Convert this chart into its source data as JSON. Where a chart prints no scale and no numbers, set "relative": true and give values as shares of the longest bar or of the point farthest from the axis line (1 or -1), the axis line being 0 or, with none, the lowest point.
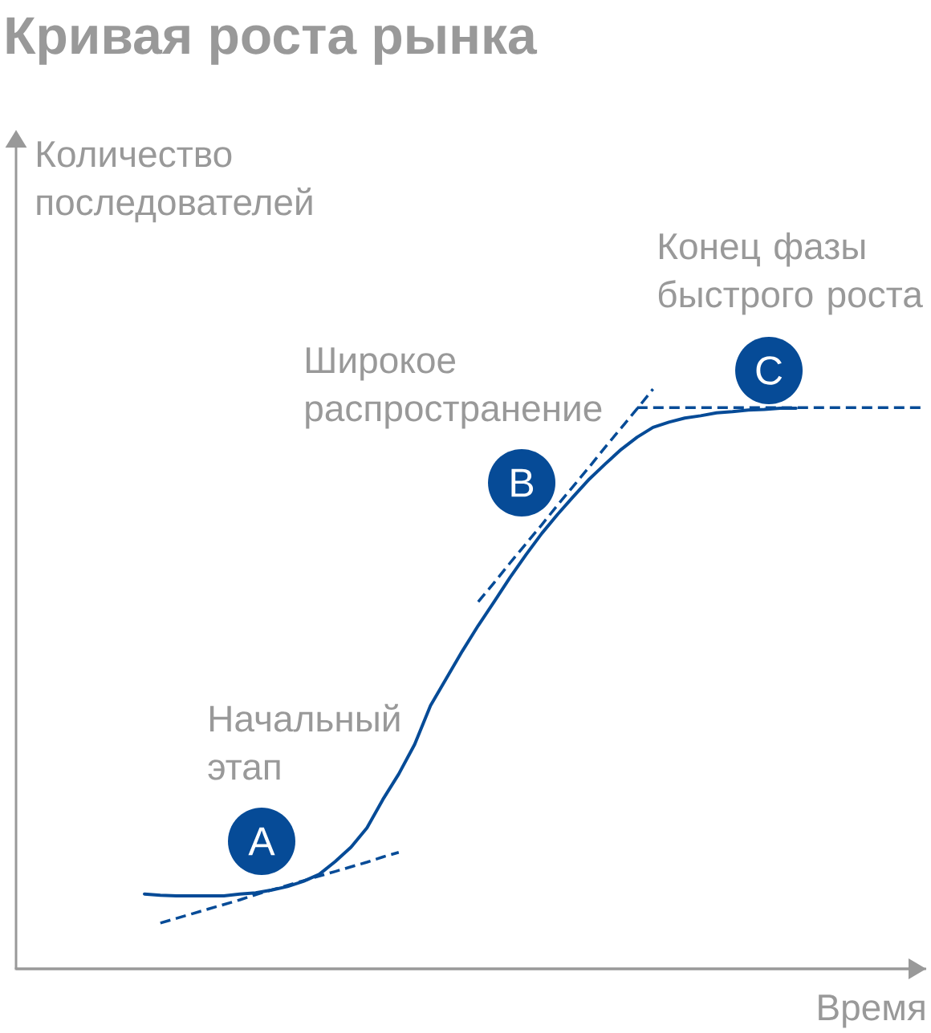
{
  "chart_data": {
    "type": "line",
    "title": "Кривая роста рынка",
    "xlabel": "Время",
    "ylabel": "Количество последователей",
    "relative": true,
    "tick_labels": false,
    "categories": [
      null,
      null,
      null,
      null,
      null,
      null,
      null,
      null,
      null,
      null,
      null,
      null,
      null,
      null,
      null,
      null,
      null,
      null,
      null,
      null,
      null,
      null,
      null,
      null,
      null,
      null,
      null,
      null,
      null,
      null,
      null,
      null,
      null,
      null,
      null,
      null,
      null,
      null,
      null,
      null,
      null,
      null,
      null,
      null,
      null,
      null,
      null,
      null,
      null,
      null
    ],
    "series": [
      {
        "color": "#064b97",
        "line_style": "solid",
        "values": [
          0.129,
          0.127,
          0.126,
          0.126,
          0.126,
          0.126,
          0.129,
          0.131,
          0.136,
          0.142,
          0.151,
          0.163,
          0.185,
          0.21,
          0.243,
          0.292,
          0.336,
          0.387,
          0.454,
          0.501,
          0.548,
          0.592,
          0.633,
          0.675,
          0.714,
          0.751,
          0.784,
          0.815,
          0.845,
          0.871,
          0.896,
          0.917,
          0.934,
          0.943,
          0.95,
          0.954,
          0.959,
          0.961,
          0.964,
          0.965,
          0.967,
          0.967,
          null,
          null,
          null,
          null,
          null,
          null,
          null,
          null
        ]
      },
      {
        "color": "#064b97",
        "line_style": "dashed",
        "values": [
          null,
          0.079,
          0.087,
          0.095,
          0.103,
          0.111,
          0.119,
          0.128,
          0.136,
          0.144,
          0.152,
          0.16,
          0.168,
          0.176,
          0.184,
          0.193,
          0.201,
          null,
          null,
          null,
          null,
          null,
          null,
          null,
          null,
          null,
          null,
          null,
          null,
          null,
          null,
          null,
          null,
          null,
          null,
          null,
          null,
          null,
          null,
          null,
          null,
          null,
          null,
          null,
          null,
          null,
          null,
          null,
          null,
          null
        ]
      },
      {
        "color": "#064b97",
        "line_style": "dashed",
        "values": [
          null,
          null,
          null,
          null,
          null,
          null,
          null,
          null,
          null,
          null,
          null,
          null,
          null,
          null,
          null,
          null,
          null,
          null,
          null,
          null,
          null,
          0.633,
          0.666,
          0.7,
          0.733,
          0.766,
          0.8,
          0.833,
          0.866,
          0.9,
          0.933,
          0.966,
          1.0,
          null,
          null,
          null,
          null,
          null,
          null,
          null,
          null,
          null,
          null,
          null,
          null,
          null,
          null,
          null,
          null,
          null
        ]
      },
      {
        "color": "#064b97",
        "line_style": "dashed",
        "values": [
          null,
          null,
          null,
          null,
          null,
          null,
          null,
          null,
          null,
          null,
          null,
          null,
          null,
          null,
          null,
          null,
          null,
          null,
          null,
          null,
          null,
          null,
          null,
          null,
          null,
          null,
          null,
          null,
          null,
          null,
          null,
          0.968,
          0.968,
          0.968,
          0.968,
          0.968,
          0.968,
          0.968,
          0.968,
          0.968,
          0.968,
          0.968,
          0.968,
          0.968,
          0.968,
          0.968,
          0.968,
          0.968,
          0.968,
          0.968
        ]
      }
    ],
    "annotations": [
      "Начальный этап",
      "Широкое распространение",
      "Конец фазы быстрого роста",
      "A",
      "B",
      "C"
    ]
  }
}
